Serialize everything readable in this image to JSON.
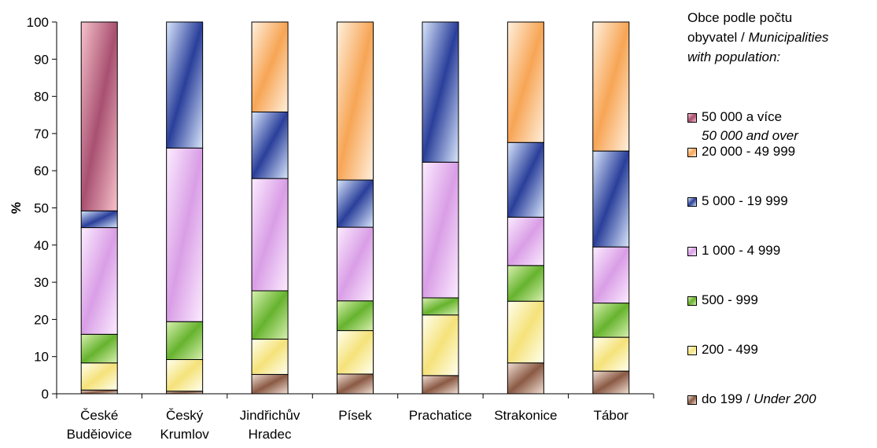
{
  "chart_data": {
    "type": "bar",
    "stacked": true,
    "ylabel": "%",
    "ylim": [
      0,
      100
    ],
    "yticks": [
      "0",
      "10",
      "20",
      "30",
      "40",
      "50",
      "60",
      "70",
      "80",
      "90",
      "100"
    ],
    "categories": [
      [
        "České",
        "Buděiovice"
      ],
      [
        "Český",
        "Krumlov"
      ],
      [
        "Jindřichův",
        "Hradec"
      ],
      [
        "Písek"
      ],
      [
        "Prachatice"
      ],
      [
        "Strakonice"
      ],
      [
        "Tábor"
      ]
    ],
    "series": [
      {
        "key": "s0",
        "name": "do 199 / ",
        "name_en": "Under 200",
        "color": "#8a5a44",
        "light": "#f2e0d6",
        "values": [
          1.0,
          0.7,
          5.2,
          5.3,
          4.9,
          8.3,
          6.1
        ]
      },
      {
        "key": "s1",
        "name": "200 - 499",
        "color": "#f5e27a",
        "light": "#fffff0",
        "values": [
          7.3,
          8.5,
          9.5,
          11.7,
          16.3,
          16.6,
          9.1
        ]
      },
      {
        "key": "s2",
        "name": "500 - 999",
        "color": "#66b32e",
        "light": "#d8f0b0",
        "values": [
          7.7,
          10.2,
          13.0,
          8.0,
          4.6,
          9.6,
          9.2
        ]
      },
      {
        "key": "s3",
        "name": "1 000 - 4 999",
        "color": "#d99ee6",
        "light": "#fcecff",
        "values": [
          28.7,
          46.7,
          30.2,
          19.8,
          36.5,
          13.0,
          15.1
        ]
      },
      {
        "key": "s4",
        "name": "5 000 - 19 999",
        "color": "#2a3f9a",
        "light": "#d9e6fb",
        "values": [
          4.5,
          33.9,
          17.9,
          12.7,
          37.7,
          20.1,
          25.8
        ]
      },
      {
        "key": "s5",
        "name": "20 000 - 49 999",
        "color": "#f7a555",
        "light": "#fff0de",
        "values": [
          0,
          0,
          24.2,
          42.5,
          0,
          32.4,
          34.7
        ]
      },
      {
        "key": "s6",
        "name": "50 000  a více",
        "name_en": "50 000 and over",
        "color": "#a85070",
        "light": "#f7c2cc",
        "values": [
          50.8,
          0,
          0,
          0,
          0,
          0,
          0
        ]
      }
    ],
    "legend": {
      "title_line1": "Obce podle počtu",
      "title_line2a": "obyvatel / ",
      "title_line2b": "Municipalities",
      "title_line3": "with population:"
    },
    "legend_position": "right",
    "grid": false
  }
}
